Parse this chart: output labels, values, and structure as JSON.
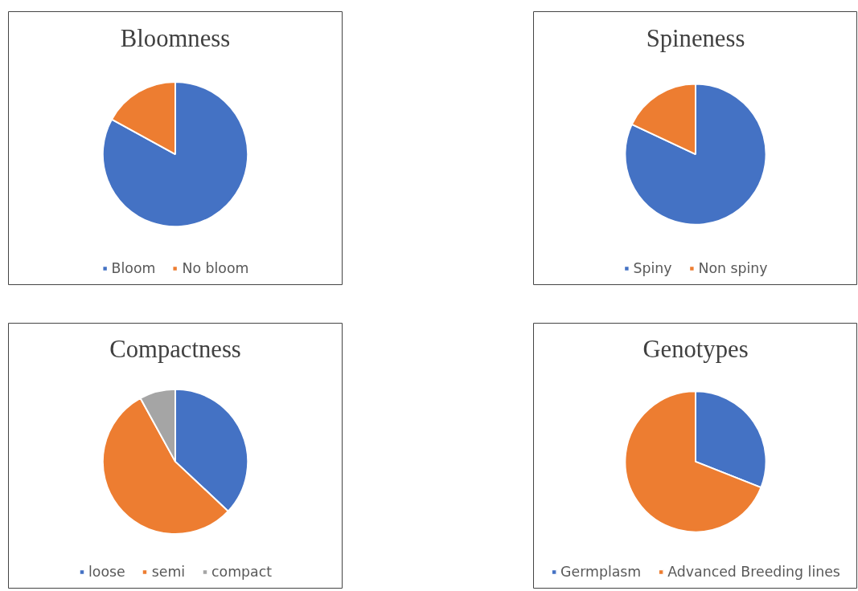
{
  "chart_data": [
    {
      "type": "pie",
      "title": "Bloomness",
      "categories": [
        "Bloom",
        "No bloom"
      ],
      "values": [
        83,
        17
      ],
      "colors": [
        "#4472c4",
        "#ed7d31"
      ],
      "legend": "bottom"
    },
    {
      "type": "pie",
      "title": "Spineness",
      "categories": [
        "Spiny",
        "Non spiny"
      ],
      "values": [
        82,
        18
      ],
      "colors": [
        "#4472c4",
        "#ed7d31"
      ],
      "legend": "bottom"
    },
    {
      "type": "pie",
      "title": "Compactness",
      "categories": [
        "loose",
        "semi",
        "compact"
      ],
      "values": [
        37,
        55,
        8
      ],
      "colors": [
        "#4472c4",
        "#ed7d31",
        "#a5a5a5"
      ],
      "legend": "bottom"
    },
    {
      "type": "pie",
      "title": "Genotypes",
      "categories": [
        "Germplasm",
        "Advanced Breeding lines"
      ],
      "values": [
        31,
        69
      ],
      "colors": [
        "#4472c4",
        "#ed7d31"
      ],
      "legend": "bottom"
    }
  ]
}
